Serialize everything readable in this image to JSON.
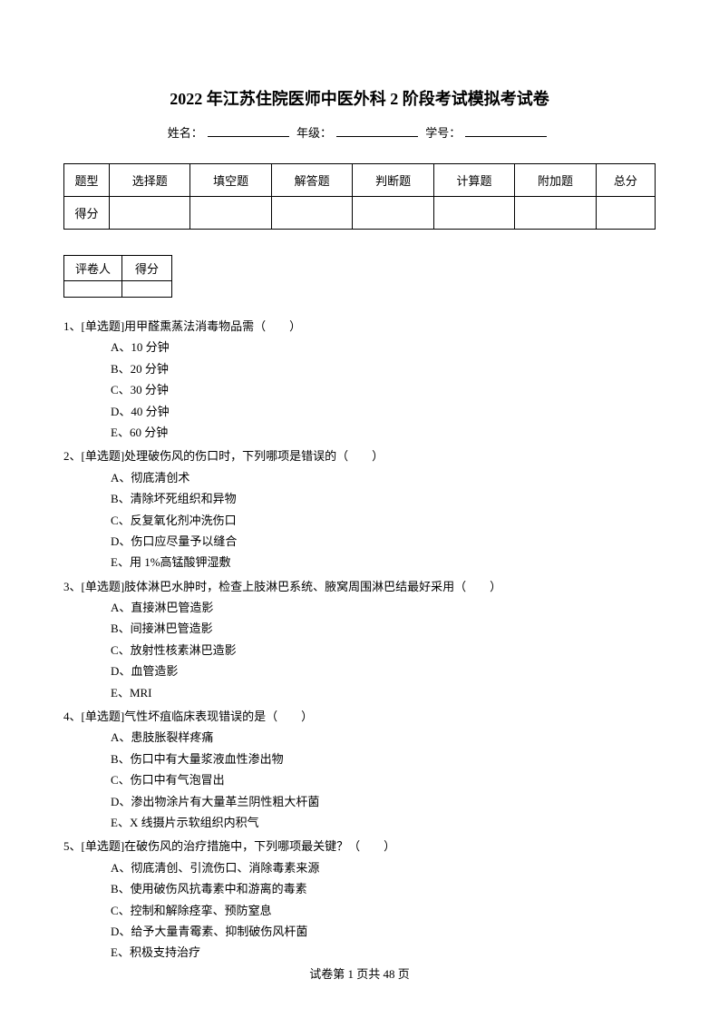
{
  "title": "2022 年江苏住院医师中医外科 2 阶段考试模拟考试卷",
  "info": {
    "name_label": "姓名：",
    "grade_label": "年级：",
    "id_label": "学号："
  },
  "type_table": {
    "row1_label": "题型",
    "row2_label": "得分",
    "headers": [
      "选择题",
      "填空题",
      "解答题",
      "判断题",
      "计算题",
      "附加题",
      "总分"
    ]
  },
  "small_table": {
    "col1": "评卷人",
    "col2": "得分"
  },
  "questions": [
    {
      "num": "1、",
      "type": "[单选题]",
      "text": "用甲醛熏蒸法消毒物品需（　　）",
      "options": [
        "A、10 分钟",
        "B、20 分钟",
        "C、30 分钟",
        "D、40 分钟",
        "E、60 分钟"
      ]
    },
    {
      "num": "2、",
      "type": "[单选题]",
      "text": "处理破伤风的伤口时，下列哪项是错误的（　　）",
      "options": [
        "A、彻底清创术",
        "B、清除坏死组织和异物",
        "C、反复氧化剂冲洗伤口",
        "D、伤口应尽量予以缝合",
        "E、用 1%高锰酸钾湿敷"
      ]
    },
    {
      "num": "3、",
      "type": "[单选题]",
      "text": "肢体淋巴水肿时，检查上肢淋巴系统、腋窝周围淋巴结最好采用（　　）",
      "options": [
        "A、直接淋巴管造影",
        "B、间接淋巴管造影",
        "C、放射性核素淋巴造影",
        "D、血管造影",
        "E、MRI"
      ]
    },
    {
      "num": "4、",
      "type": "[单选题]",
      "text": "气性坏疽临床表现错误的是（　　）",
      "options": [
        "A、患肢胀裂样疼痛",
        "B、伤口中有大量浆液血性渗出物",
        "C、伤口中有气泡冒出",
        "D、渗出物涂片有大量革兰阴性粗大杆菌",
        "E、X 线摄片示软组织内积气"
      ]
    },
    {
      "num": "5、",
      "type": "[单选题]",
      "text": "在破伤风的治疗措施中，下列哪项最关键？（　　）",
      "options": [
        "A、彻底清创、引流伤口、消除毒素来源",
        "B、使用破伤风抗毒素中和游离的毒素",
        "C、控制和解除痉挛、预防窒息",
        "D、给予大量青霉素、抑制破伤风杆菌",
        "E、积极支持治疗"
      ]
    }
  ],
  "footer": "试卷第 1 页共 48 页"
}
